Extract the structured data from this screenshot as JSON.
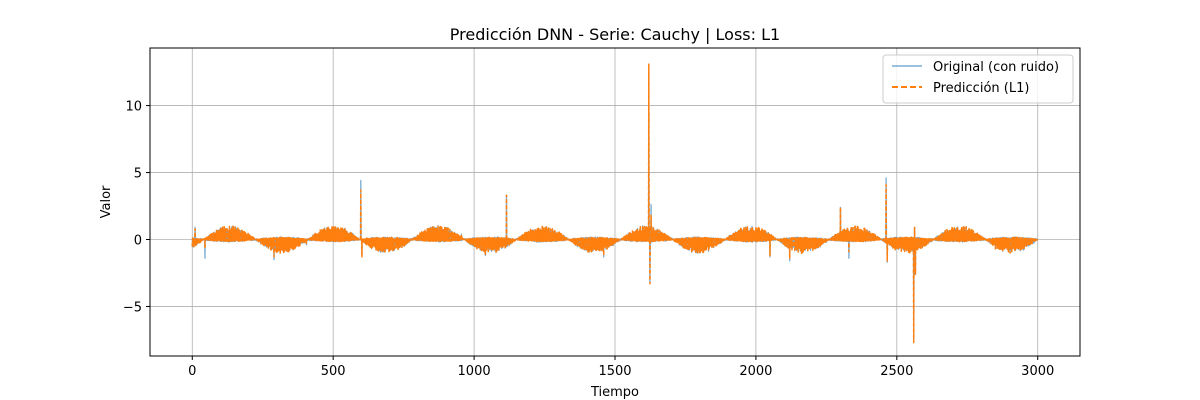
{
  "chart_data": {
    "type": "line",
    "title": "Predicción DNN - Serie: Cauchy | Loss: L1",
    "xlabel": "Tiempo",
    "ylabel": "Valor",
    "xlim": [
      -150,
      3150
    ],
    "ylim": [
      -8.7,
      14.3
    ],
    "xticks": [
      0,
      500,
      1000,
      1500,
      2000,
      2500,
      3000
    ],
    "yticks": [
      -5,
      0,
      5,
      10
    ],
    "xtick_labels": [
      "0",
      "500",
      "1000",
      "1500",
      "2000",
      "2500",
      "3000"
    ],
    "ytick_labels": [
      "−5",
      "0",
      "5",
      "10"
    ],
    "grid": true,
    "legend_position": "top-right",
    "x_range": [
      0,
      3000
    ],
    "description_signal": "sine-modulated oscillation with period ~370, amplitude ~1, plus heavy-tailed Cauchy spikes",
    "oscillation": {
      "period": 370,
      "amplitude": 1.0,
      "phase_x": 40
    },
    "spikes": [
      {
        "x": 10,
        "orig": 0.9,
        "pred": 0.8
      },
      {
        "x": 45,
        "orig": -1.4,
        "pred": -0.6
      },
      {
        "x": 120,
        "orig": 0.8,
        "pred": 0.8
      },
      {
        "x": 290,
        "orig": -1.5,
        "pred": -1.3
      },
      {
        "x": 405,
        "orig": -0.4,
        "pred": -0.3
      },
      {
        "x": 598,
        "orig": 4.4,
        "pred": 3.7
      },
      {
        "x": 602,
        "orig": -1.2,
        "pred": -1.3
      },
      {
        "x": 955,
        "orig": 0.4,
        "pred": 0.3
      },
      {
        "x": 1040,
        "orig": -1.2,
        "pred": -1.2
      },
      {
        "x": 1115,
        "orig": 3.3,
        "pred": 3.3
      },
      {
        "x": 1118,
        "orig": -0.5,
        "pred": -0.4
      },
      {
        "x": 1460,
        "orig": -1.3,
        "pred": -1.2
      },
      {
        "x": 1620,
        "orig": 13.0,
        "pred": 13.1
      },
      {
        "x": 1624,
        "orig": -3.2,
        "pred": -3.3
      },
      {
        "x": 1628,
        "orig": 2.6,
        "pred": 1.8
      },
      {
        "x": 2050,
        "orig": -1.3,
        "pred": -1.2
      },
      {
        "x": 2120,
        "orig": -1.6,
        "pred": -1.4
      },
      {
        "x": 2300,
        "orig": 2.4,
        "pred": 2.4
      },
      {
        "x": 2330,
        "orig": -1.4,
        "pred": -0.9
      },
      {
        "x": 2462,
        "orig": 4.6,
        "pred": 4.1
      },
      {
        "x": 2466,
        "orig": -1.7,
        "pred": -1.6
      },
      {
        "x": 2560,
        "orig": -7.5,
        "pred": -7.7
      },
      {
        "x": 2563,
        "orig": 0.9,
        "pred": 0.9
      },
      {
        "x": 2566,
        "orig": -2.6,
        "pred": -2.6
      },
      {
        "x": 2850,
        "orig": -0.7,
        "pred": -0.7
      }
    ],
    "series": [
      {
        "name": "Original (con ruido)",
        "color": "#1f77b4",
        "style": "solid",
        "alpha": 0.6
      },
      {
        "name": "Predicción (L1)",
        "color": "#ff7f0e",
        "style": "dashed",
        "alpha": 1.0
      }
    ]
  }
}
